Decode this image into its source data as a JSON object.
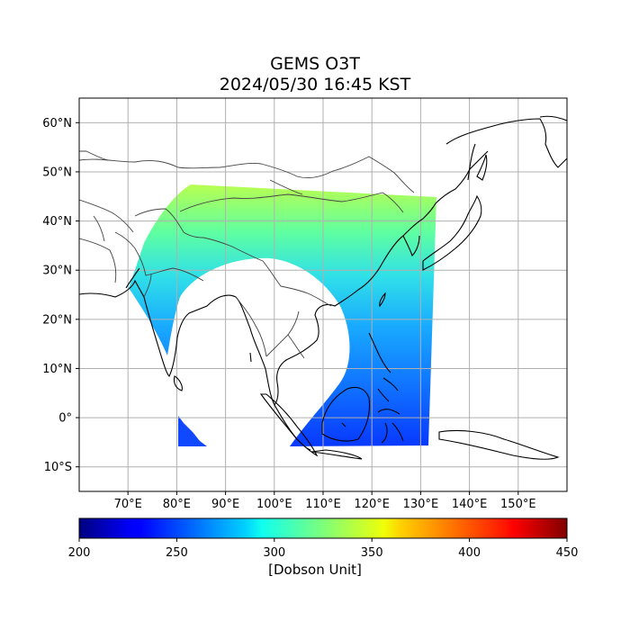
{
  "title": "GEMS O3T",
  "subtitle": "2024/05/30 16:45 KST",
  "map": {
    "projection": "PlateCarree",
    "lon_range": [
      60,
      160
    ],
    "lat_range": [
      -15,
      65
    ],
    "grid": true,
    "lat_ticks": [
      {
        "value": 60,
        "label": "60°N"
      },
      {
        "value": 50,
        "label": "50°N"
      },
      {
        "value": 40,
        "label": "40°N"
      },
      {
        "value": 30,
        "label": "30°N"
      },
      {
        "value": 20,
        "label": "20°N"
      },
      {
        "value": 10,
        "label": "10°N"
      },
      {
        "value": 0,
        "label": "0°"
      },
      {
        "value": -10,
        "label": "10°S"
      }
    ],
    "lon_ticks": [
      {
        "value": 70,
        "label": "70°E"
      },
      {
        "value": 80,
        "label": "80°E"
      },
      {
        "value": 90,
        "label": "90°E"
      },
      {
        "value": 100,
        "label": "100°E"
      },
      {
        "value": 110,
        "label": "110°E"
      },
      {
        "value": 120,
        "label": "120°E"
      },
      {
        "value": 130,
        "label": "130°E"
      },
      {
        "value": 140,
        "label": "140°E"
      },
      {
        "value": 150,
        "label": "150°E"
      }
    ]
  },
  "colorbar": {
    "label": "[Dobson Unit]",
    "colormap": "jet",
    "range": [
      200,
      450
    ],
    "ticks": [
      {
        "value": 200,
        "label": "200"
      },
      {
        "value": 250,
        "label": "250"
      },
      {
        "value": 300,
        "label": "300"
      },
      {
        "value": 350,
        "label": "350"
      },
      {
        "value": 400,
        "label": "400"
      },
      {
        "value": 450,
        "label": "450"
      }
    ]
  },
  "colors": {
    "low_ozone": "#1a40ff",
    "mid_ozone": "#30d0ff",
    "high_ozone": "#c0ff40",
    "coastline": "#000000",
    "border": "#444444",
    "grid": "#b0b0b0"
  }
}
